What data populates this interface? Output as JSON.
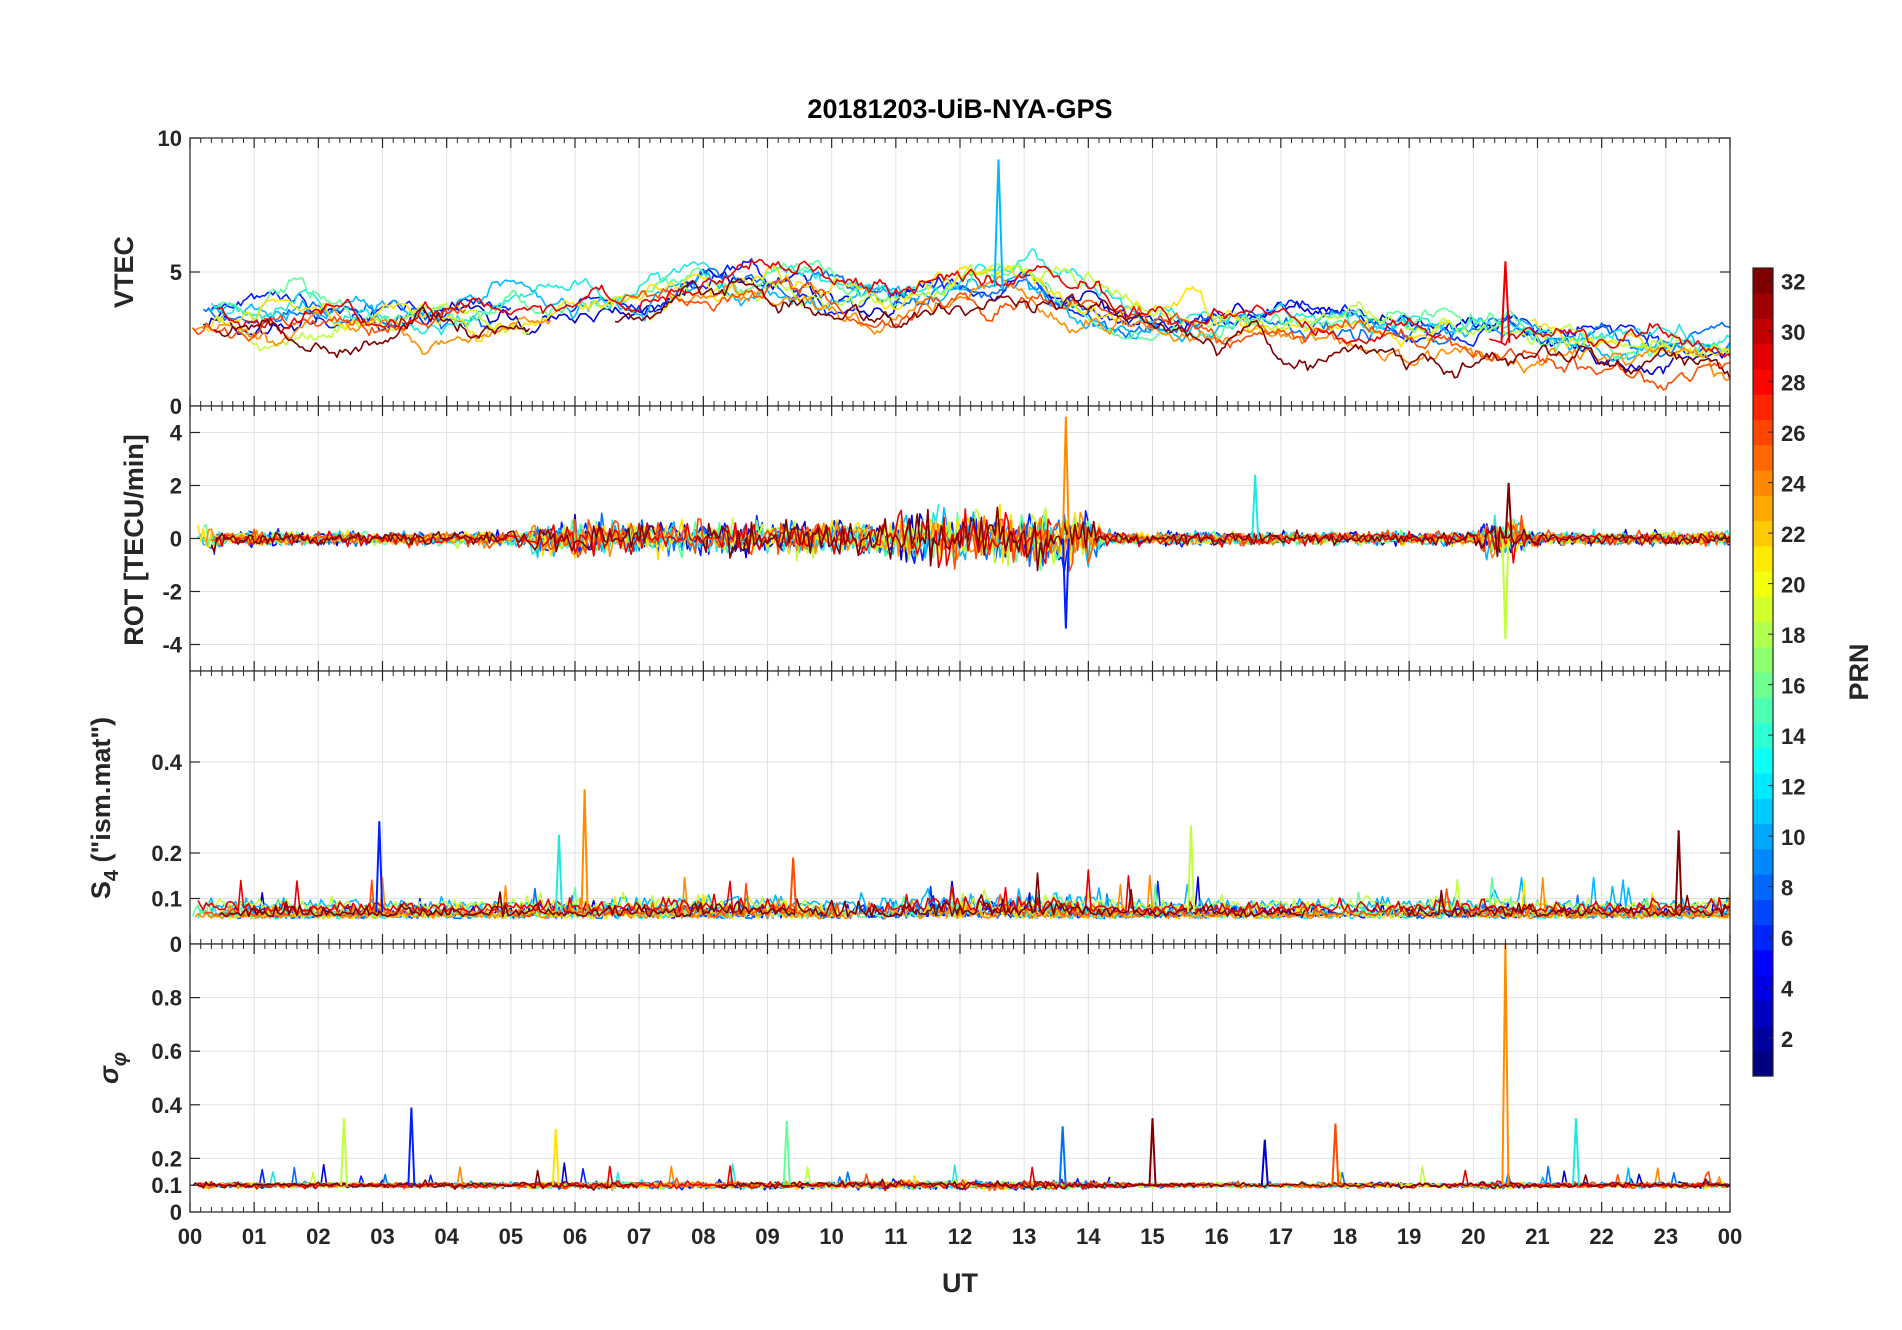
{
  "chart_data": {
    "type": "line",
    "title": "20181203-UiB-NYA-GPS",
    "xlabel": "UT",
    "x_tick_labels": [
      "00",
      "01",
      "02",
      "03",
      "04",
      "05",
      "06",
      "07",
      "08",
      "09",
      "10",
      "11",
      "12",
      "13",
      "14",
      "15",
      "16",
      "17",
      "18",
      "19",
      "20",
      "21",
      "22",
      "23",
      "00"
    ],
    "xlim": [
      0,
      24
    ],
    "grid": true,
    "panels": [
      {
        "ylabel": "VTEC",
        "ylim": [
          0,
          10
        ],
        "y_ticks": [
          0,
          5,
          10
        ],
        "envelope": [
          [
            0,
            3.2
          ],
          [
            1,
            3.1
          ],
          [
            2,
            3.3
          ],
          [
            3,
            3.0
          ],
          [
            4,
            3.2
          ],
          [
            5,
            3.5
          ],
          [
            6,
            3.6
          ],
          [
            7,
            3.8
          ],
          [
            8,
            4.4
          ],
          [
            9,
            4.3
          ],
          [
            10,
            4.0
          ],
          [
            11,
            3.6
          ],
          [
            12,
            4.3
          ],
          [
            13,
            4.6
          ],
          [
            14,
            3.6
          ],
          [
            15,
            3.0
          ],
          [
            16,
            2.8
          ],
          [
            17,
            2.9
          ],
          [
            18,
            3.0
          ],
          [
            19,
            2.6
          ],
          [
            20,
            2.4
          ],
          [
            21,
            2.3
          ],
          [
            22,
            2.2
          ],
          [
            23,
            2.1
          ],
          [
            24,
            2.0
          ]
        ],
        "annotations": [
          {
            "x": 12.6,
            "y": 9.2
          },
          {
            "x": 20.5,
            "y": 5.4
          }
        ]
      },
      {
        "ylabel": "ROT [TECU/min]",
        "ylim": [
          -5,
          5
        ],
        "y_ticks": [
          -4,
          -2,
          0,
          2,
          4
        ],
        "spikes": [
          {
            "x": 13.65,
            "y": 4.6
          },
          {
            "x": 13.65,
            "y": -3.4
          },
          {
            "x": 20.5,
            "y": -3.8
          },
          {
            "x": 20.55,
            "y": 2.1
          },
          {
            "x": 16.6,
            "y": 2.4
          }
        ]
      },
      {
        "ylabel_main": "S",
        "ylabel_sub": "4",
        "ylabel_rest": " (\"ism.mat\")",
        "ylim": [
          0,
          0.6
        ],
        "y_ticks": [
          0,
          0.1,
          0.2,
          0.4
        ],
        "baseline": 0.07,
        "spikes": [
          {
            "x": 6.15,
            "y": 0.34
          },
          {
            "x": 2.95,
            "y": 0.27
          },
          {
            "x": 15.6,
            "y": 0.26
          },
          {
            "x": 23.2,
            "y": 0.25
          },
          {
            "x": 5.75,
            "y": 0.24
          },
          {
            "x": 9.4,
            "y": 0.19
          }
        ]
      },
      {
        "ylabel_main": "σ",
        "ylabel_sub": "φ",
        "ylim": [
          0,
          1
        ],
        "y_ticks": [
          0,
          0.1,
          0.2,
          0.4,
          0.6,
          0.8
        ],
        "baseline": 0.1,
        "spikes": [
          {
            "x": 20.5,
            "y": 1.0
          },
          {
            "x": 3.45,
            "y": 0.39
          },
          {
            "x": 2.4,
            "y": 0.35
          },
          {
            "x": 15.0,
            "y": 0.35
          },
          {
            "x": 21.6,
            "y": 0.35
          },
          {
            "x": 17.85,
            "y": 0.33
          },
          {
            "x": 13.6,
            "y": 0.32
          },
          {
            "x": 5.7,
            "y": 0.31
          },
          {
            "x": 16.75,
            "y": 0.27
          },
          {
            "x": 9.3,
            "y": 0.34
          }
        ]
      }
    ],
    "colorbar": {
      "label": "PRN",
      "range": [
        1,
        32
      ],
      "tick_labels": [
        "2",
        "4",
        "6",
        "8",
        "10",
        "12",
        "14",
        "16",
        "18",
        "20",
        "22",
        "24",
        "26",
        "28",
        "30",
        "32"
      ],
      "colormap": "jet"
    },
    "series": [
      {
        "prn": 2,
        "color": "#0000d0"
      },
      {
        "prn": 5,
        "color": "#0020ff"
      },
      {
        "prn": 8,
        "color": "#0070ff"
      },
      {
        "prn": 11,
        "color": "#00b8ff"
      },
      {
        "prn": 13,
        "color": "#20e8e0"
      },
      {
        "prn": 16,
        "color": "#60ff98"
      },
      {
        "prn": 19,
        "color": "#c0ff3c"
      },
      {
        "prn": 21,
        "color": "#ffe400"
      },
      {
        "prn": 24,
        "color": "#ff8c00"
      },
      {
        "prn": 26,
        "color": "#ff4c00"
      },
      {
        "prn": 29,
        "color": "#e80000"
      },
      {
        "prn": 32,
        "color": "#800000"
      }
    ]
  }
}
